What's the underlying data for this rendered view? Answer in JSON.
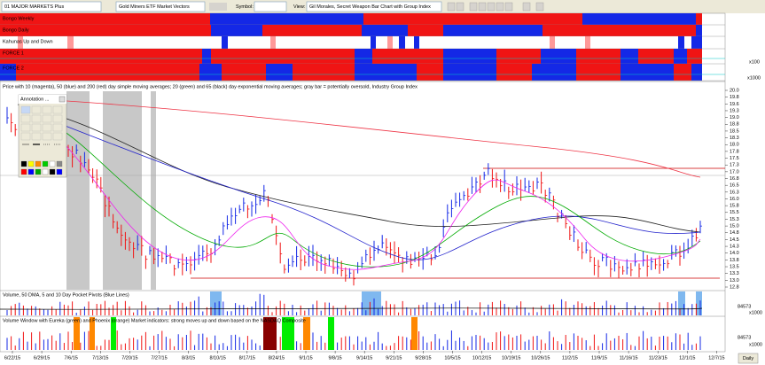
{
  "toolbar": {
    "list": "01 MAJOR MARKETS Plus",
    "security": "Gold Miners ETF Market Vectors",
    "symbol_label": "Symbol:",
    "view_label": "View:",
    "view": "Gil Morales, Secret Weapon Bar Chart with Group Index"
  },
  "panels": {
    "bongo_weekly": "Bongo Weekly",
    "bongo_daily": "Bongo Daily",
    "kahunas": "Kahunas Up and Down",
    "force1": "FORCE 1",
    "force1_scale": "x100",
    "force2": "FORCE 2",
    "force2_scale": "x1000",
    "price": "Price with 10 (magenta), 50 (blue) and 200 (red) day simple moving averages; 20 (green) and 65 (black) day exponential moving averages; gray bar = potentially oversold, Industry Group Index",
    "volume": "Volume, 50 DMA, 5 and 10 Day Pocket Pivots (Blue Lines)",
    "volume_value": "84573",
    "volume_scale": "x1000",
    "volume_window": "Volume Window with Eureka (green) and Phoenix (orange) Market indicators: strong moves up and down based on the NASDAQ Composite",
    "volume_window_value": "84573",
    "volume_window_scale": "x1000"
  },
  "annotation_title": "Annotation ...",
  "price_axis": [
    "20.0",
    "19.8",
    "19.6",
    "19.3",
    "19.0",
    "18.8",
    "18.5",
    "18.3",
    "18.0",
    "17.8",
    "17.5",
    "17.3",
    "17.0",
    "16.8",
    "16.5",
    "16.3",
    "16.0",
    "15.8",
    "15.5",
    "15.3",
    "15.0",
    "14.8",
    "14.5",
    "14.3",
    "14.0",
    "13.8",
    "13.5",
    "13.3",
    "13.0",
    "12.8"
  ],
  "date_axis": [
    "6/22/15",
    "6/29/15",
    "7/6/15",
    "7/13/15",
    "7/20/15",
    "7/27/15",
    "8/3/15",
    "8/10/15",
    "8/17/15",
    "8/24/15",
    "9/1/15",
    "9/8/15",
    "9/14/15",
    "9/21/15",
    "9/28/15",
    "10/5/15",
    "10/12/15",
    "10/19/15",
    "10/26/15",
    "11/2/15",
    "11/9/15",
    "11/16/15",
    "11/23/15",
    "12/1/15",
    "12/7/15"
  ],
  "period_button": "Daily"
}
